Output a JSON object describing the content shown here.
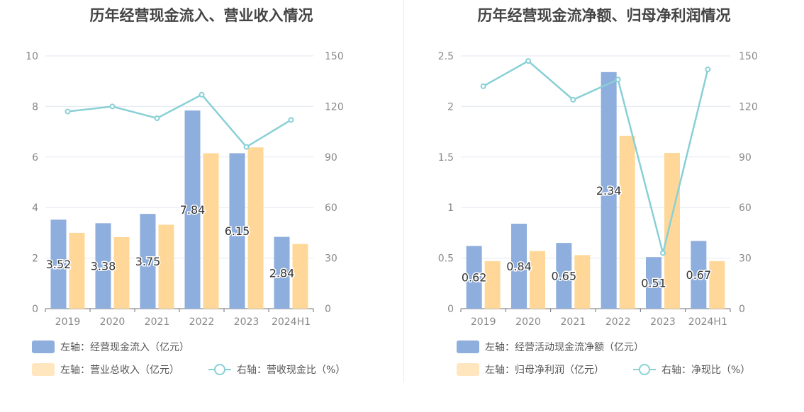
{
  "colors": {
    "bar_primary": "#8eaedd",
    "bar_secondary": "#ffd899",
    "line": "#88d0d6",
    "grid": "#e3e7f0",
    "axis_text": "#888888",
    "label_text": "#333333"
  },
  "chart_data": [
    {
      "type": "bar",
      "title": "历年经营现金流入、营业收入情况",
      "categories": [
        "2019",
        "2020",
        "2021",
        "2022",
        "2023",
        "2024H1"
      ],
      "left_axis": {
        "range": [
          0,
          10
        ],
        "ticks": [
          "0",
          "2",
          "4",
          "6",
          "8",
          "10"
        ]
      },
      "right_axis": {
        "range": [
          0,
          150
        ],
        "ticks": [
          "0",
          "30",
          "60",
          "90",
          "120",
          "150"
        ]
      },
      "series": [
        {
          "name": "左轴：经营现金流入（亿元）",
          "kind": "bar",
          "axis": "left",
          "values": [
            3.52,
            3.38,
            3.75,
            7.84,
            6.15,
            2.84
          ],
          "labels": [
            "3.52",
            "3.38",
            "3.75",
            "7.84",
            "6.15",
            "2.84"
          ]
        },
        {
          "name": "左轴：营业总收入（亿元）",
          "kind": "bar",
          "axis": "left",
          "values": [
            3.0,
            2.83,
            3.32,
            6.15,
            6.38,
            2.56
          ]
        },
        {
          "name": "右轴：营收现金比（%）",
          "kind": "line",
          "axis": "right",
          "values": [
            117,
            120,
            113,
            127,
            96,
            112
          ]
        }
      ],
      "grid": true,
      "legend_position": "bottom-left"
    },
    {
      "type": "bar",
      "title": "历年经营现金流净额、归母净利润情况",
      "categories": [
        "2019",
        "2020",
        "2021",
        "2022",
        "2023",
        "2024H1"
      ],
      "left_axis": {
        "range": [
          0,
          2.5
        ],
        "ticks": [
          "0",
          "0.5",
          "1",
          "1.5",
          "2",
          "2.5"
        ]
      },
      "right_axis": {
        "range": [
          0,
          150
        ],
        "ticks": [
          "0",
          "30",
          "60",
          "90",
          "120",
          "150"
        ]
      },
      "series": [
        {
          "name": "左轴：经营活动现金流净额（亿元）",
          "kind": "bar",
          "axis": "left",
          "values": [
            0.62,
            0.84,
            0.65,
            2.34,
            0.51,
            0.67
          ],
          "labels": [
            "0.62",
            "0.84",
            "0.65",
            "2.34",
            "0.51",
            "0.67"
          ]
        },
        {
          "name": "左轴：归母净利润（亿元）",
          "kind": "bar",
          "axis": "left",
          "values": [
            0.47,
            0.57,
            0.53,
            1.71,
            1.54,
            0.47
          ]
        },
        {
          "name": "右轴：净现比（%）",
          "kind": "line",
          "axis": "right",
          "values": [
            132,
            147,
            124,
            136,
            33,
            142
          ]
        }
      ],
      "grid": true,
      "legend_position": "bottom-left"
    }
  ]
}
